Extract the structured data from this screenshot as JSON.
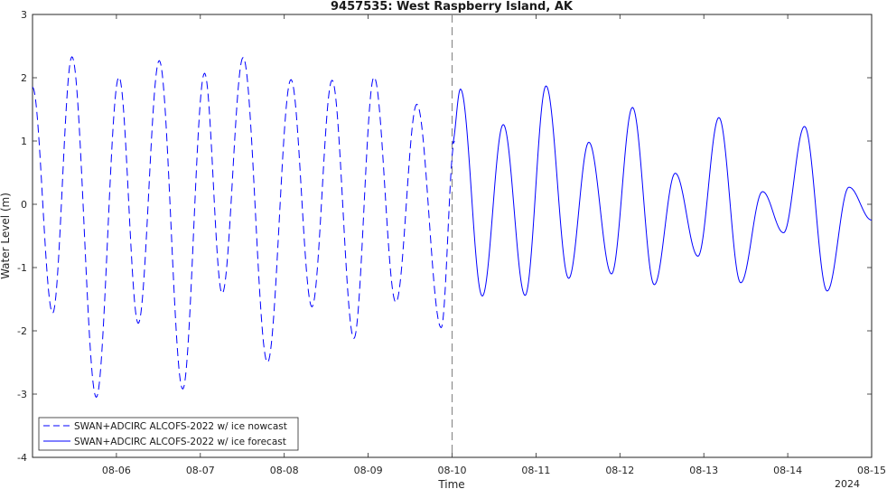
{
  "chart_data": {
    "type": "line",
    "title": "9457535: West Raspberry Island, AK",
    "xlabel": "Time",
    "ylabel": "Water Level (m)",
    "year_label": "2024",
    "xlim": [
      5.0,
      15.0
    ],
    "ylim": [
      -4,
      3
    ],
    "x_ticks": [
      6,
      7,
      8,
      9,
      10,
      11,
      12,
      13,
      14,
      15
    ],
    "x_tick_labels": [
      "08-06",
      "08-07",
      "08-08",
      "08-09",
      "08-10",
      "08-11",
      "08-12",
      "08-13",
      "08-14",
      "08-15"
    ],
    "y_ticks": [
      -4,
      -3,
      -2,
      -1,
      0,
      1,
      2,
      3
    ],
    "y_tick_labels": [
      "-4",
      "-3",
      "-2",
      "-1",
      "0",
      "1",
      "2",
      "3"
    ],
    "grid": false,
    "legend_position": "bottom-left",
    "forecast_start_x": 10.0,
    "colors": {
      "series": "#0000ff",
      "divider": "#808080",
      "axes": "#262626"
    },
    "series": [
      {
        "name": "SWAN+ADCIRC ALCOFS-2022 w/ ice nowcast",
        "style": "dashed",
        "extrema": [
          [
            5.0,
            1.85
          ],
          [
            5.24,
            -1.72
          ],
          [
            5.47,
            2.33
          ],
          [
            5.76,
            -3.05
          ],
          [
            6.03,
            2.01
          ],
          [
            6.26,
            -1.88
          ],
          [
            6.51,
            2.27
          ],
          [
            6.79,
            -2.92
          ],
          [
            7.05,
            2.07
          ],
          [
            7.26,
            -1.41
          ],
          [
            7.51,
            2.32
          ],
          [
            7.8,
            -2.5
          ],
          [
            8.08,
            1.97
          ],
          [
            8.33,
            -1.62
          ],
          [
            8.57,
            1.96
          ],
          [
            8.83,
            -2.12
          ],
          [
            9.07,
            2.01
          ],
          [
            9.33,
            -1.55
          ],
          [
            9.58,
            1.58
          ],
          [
            9.87,
            -1.95
          ],
          [
            10.03,
            1.0
          ]
        ]
      },
      {
        "name": "SWAN+ADCIRC ALCOFS-2022 w/ ice forecast",
        "style": "solid",
        "extrema": [
          [
            10.0,
            0.95
          ],
          [
            10.1,
            1.82
          ],
          [
            10.36,
            -1.45
          ],
          [
            10.61,
            1.26
          ],
          [
            10.87,
            -1.44
          ],
          [
            11.12,
            1.87
          ],
          [
            11.39,
            -1.17
          ],
          [
            11.63,
            0.98
          ],
          [
            11.9,
            -1.1
          ],
          [
            12.15,
            1.53
          ],
          [
            12.41,
            -1.27
          ],
          [
            12.66,
            0.49
          ],
          [
            12.93,
            -0.82
          ],
          [
            13.18,
            1.37
          ],
          [
            13.44,
            -1.24
          ],
          [
            13.7,
            0.2
          ],
          [
            13.95,
            -0.45
          ],
          [
            14.2,
            1.23
          ],
          [
            14.47,
            -1.37
          ],
          [
            14.73,
            0.27
          ],
          [
            15.0,
            -0.25
          ]
        ]
      }
    ]
  }
}
